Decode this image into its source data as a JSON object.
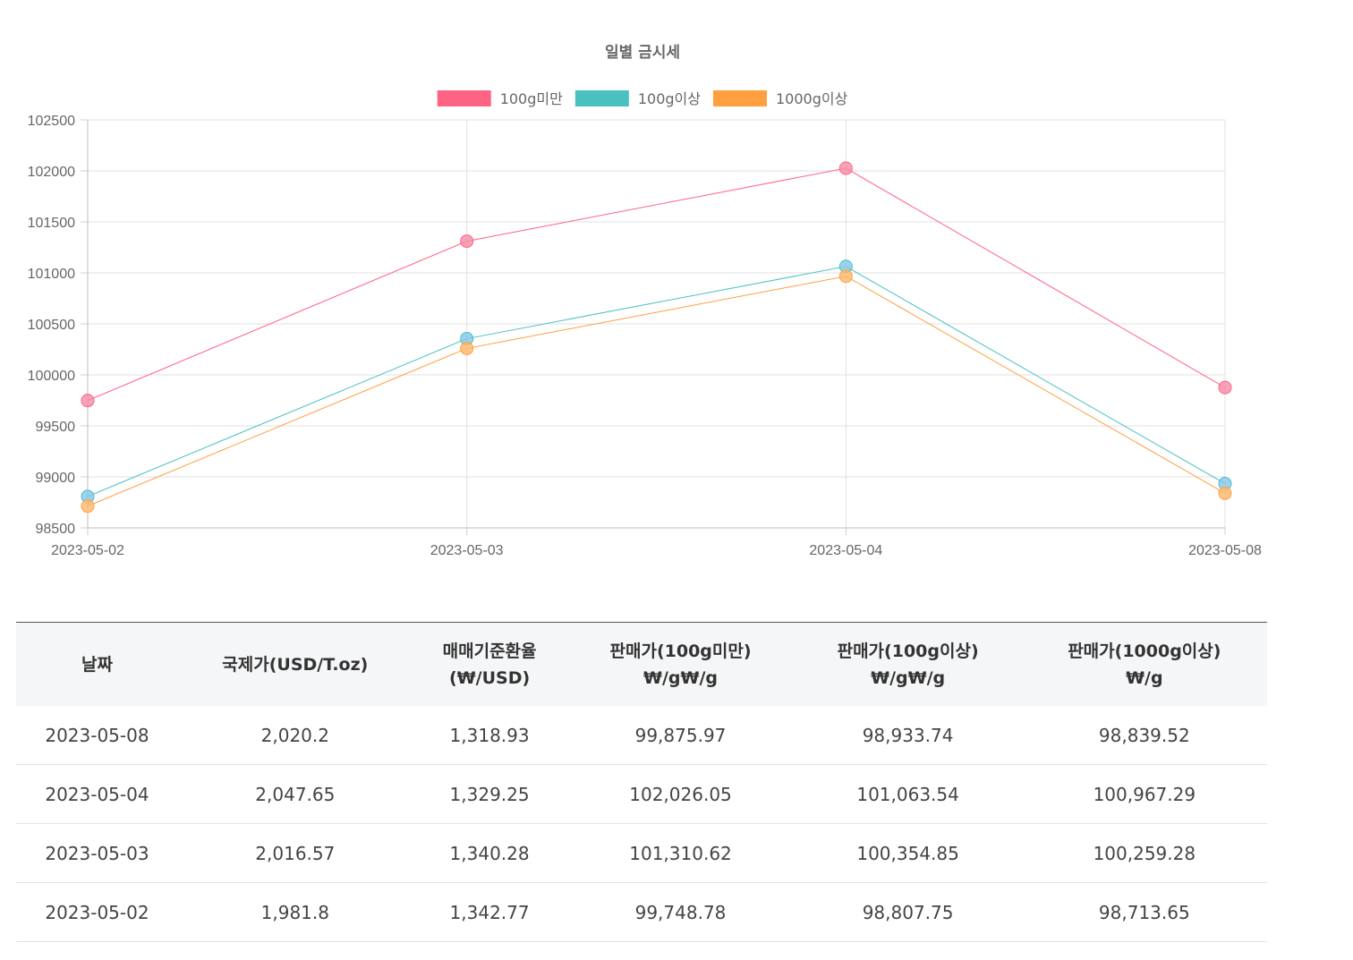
{
  "chart_data": {
    "type": "line",
    "title": "일별 금시세",
    "x": [
      "2023-05-02",
      "2023-05-03",
      "2023-05-04",
      "2023-05-08"
    ],
    "ylim": [
      98500,
      102500
    ],
    "yticks": [
      102500,
      102000,
      101500,
      101000,
      100500,
      100000,
      99500,
      99000,
      98500
    ],
    "grid": true,
    "legend_position": "top",
    "series": [
      {
        "name": "100g미만",
        "color": "#ff6384",
        "values": [
          99748.78,
          101310.62,
          102026.05,
          99875.97
        ]
      },
      {
        "name": "100g이상",
        "color": "#4bc0c0",
        "values": [
          98807.75,
          100354.85,
          101063.54,
          98933.74
        ]
      },
      {
        "name": "1000g이상",
        "color": "#ff9f40",
        "values": [
          98713.65,
          100259.28,
          100967.29,
          98839.52
        ]
      }
    ],
    "marker_colors": [
      "#f58ca6",
      "#82c8ea",
      "#ffb86b"
    ]
  },
  "table": {
    "headers": [
      [
        "날짜"
      ],
      [
        "국제가(USD/T.oz)"
      ],
      [
        "매매기준환율",
        "(₩/USD)"
      ],
      [
        "판매가(100g미만)",
        "₩/g₩/g"
      ],
      [
        "판매가(100g이상)",
        "₩/g₩/g"
      ],
      [
        "판매가(1000g이상)",
        "₩/g"
      ]
    ],
    "rows": [
      [
        "2023-05-08",
        "2,020.2",
        "1,318.93",
        "99,875.97",
        "98,933.74",
        "98,839.52"
      ],
      [
        "2023-05-04",
        "2,047.65",
        "1,329.25",
        "102,026.05",
        "101,063.54",
        "100,967.29"
      ],
      [
        "2023-05-03",
        "2,016.57",
        "1,340.28",
        "101,310.62",
        "100,354.85",
        "100,259.28"
      ],
      [
        "2023-05-02",
        "1,981.8",
        "1,342.77",
        "99,748.78",
        "98,807.75",
        "98,713.65"
      ]
    ]
  }
}
